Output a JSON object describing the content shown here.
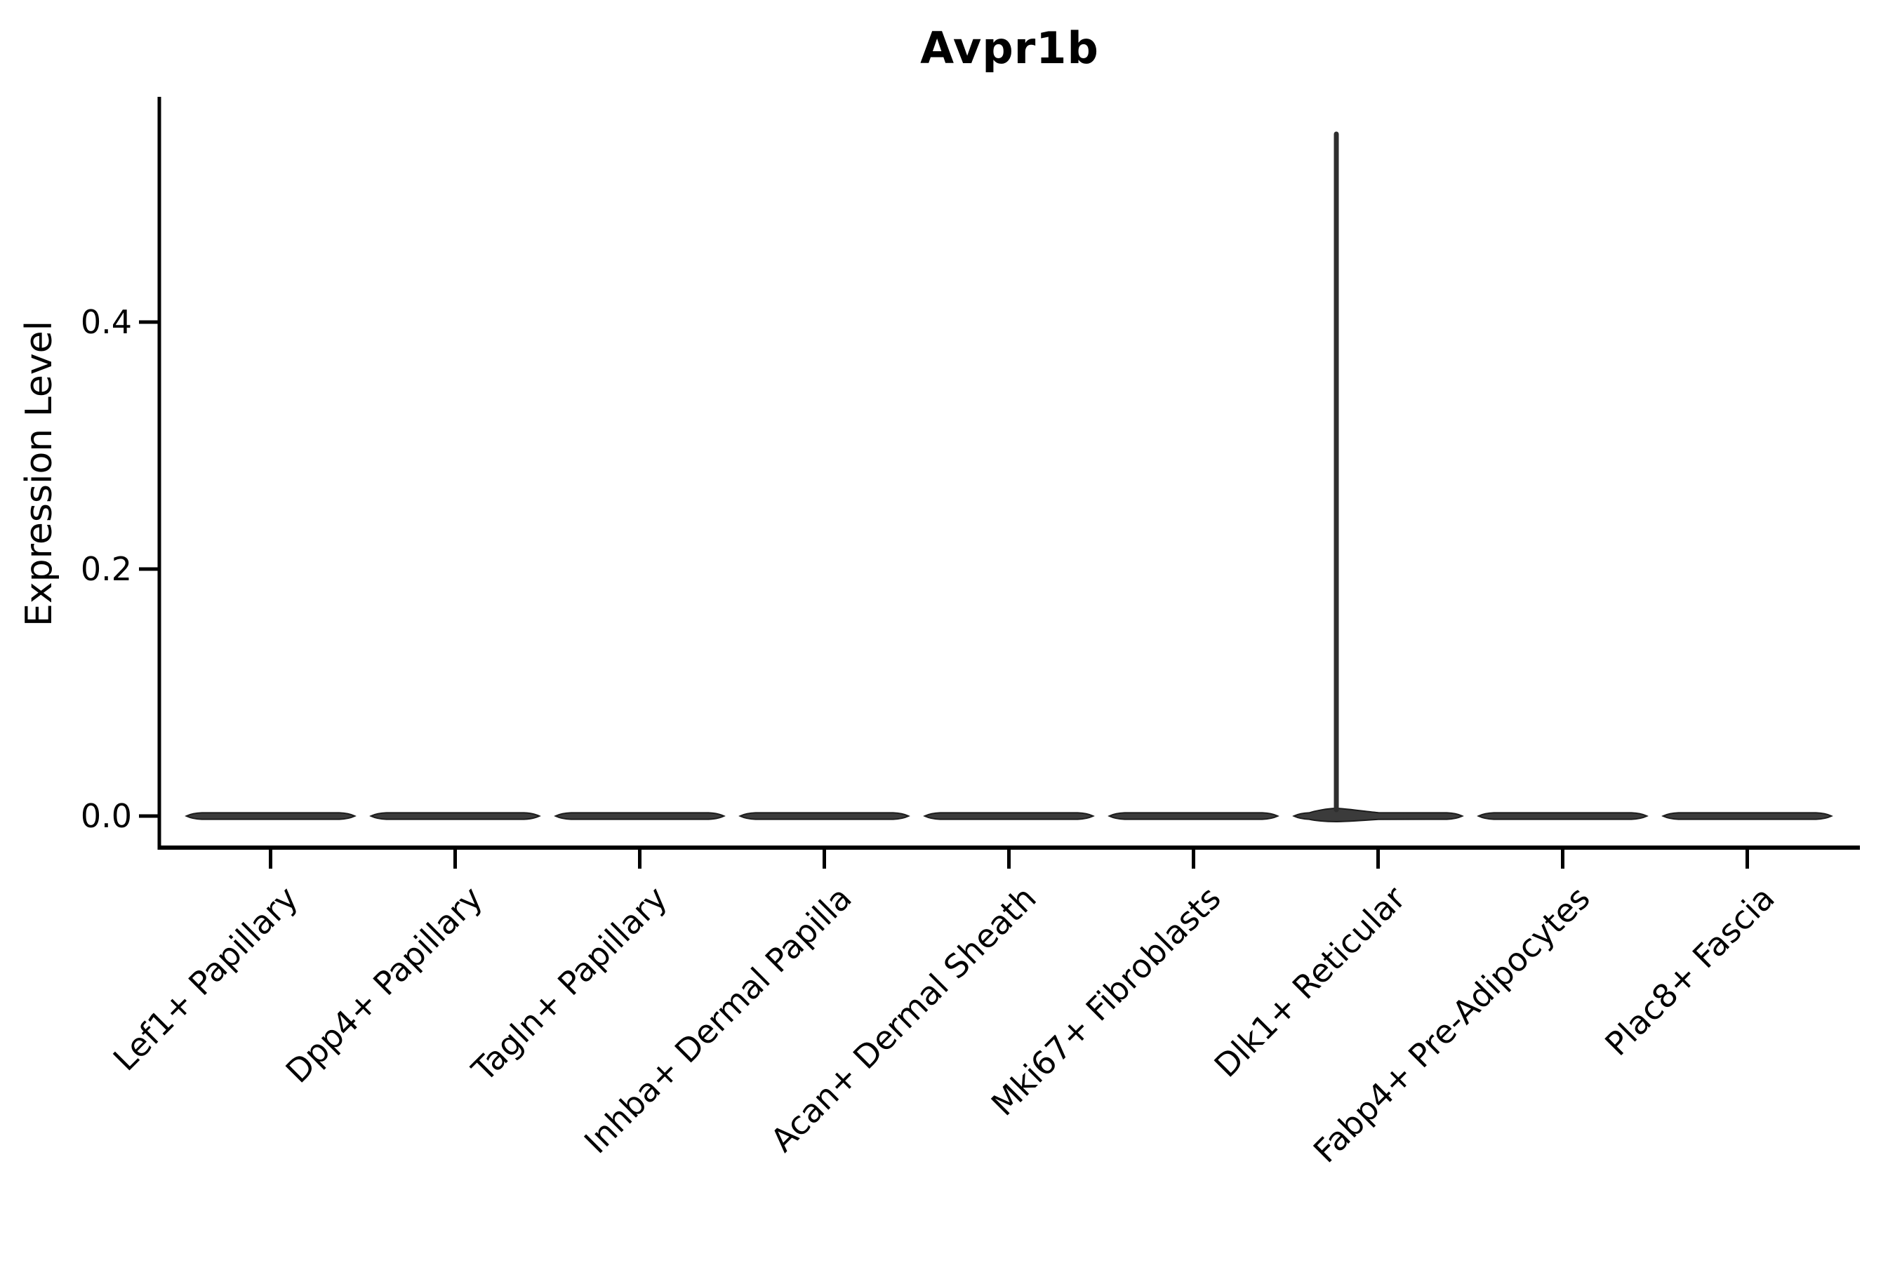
{
  "chart_data": {
    "type": "violin",
    "title": "Avpr1b",
    "ylabel": "Expression Level",
    "xlabel": "",
    "categories": [
      "Lef1+ Papillary",
      "Dpp4+ Papillary",
      "Tagln+ Papillary",
      "Inhba+ Dermal Papilla",
      "Acan+ Dermal Sheath",
      "Mki67+ Fibroblasts",
      "Dlk1+ Reticular",
      "Fabp4+ Pre-Adipocytes",
      "Plac8+ Fascia"
    ],
    "ytick_labels": [
      "0.0",
      "0.2",
      "0.4"
    ],
    "yticks": [
      0.0,
      0.2,
      0.4
    ],
    "ylim": [
      0,
      0.58
    ],
    "series": [
      {
        "name": "max_expression",
        "values": [
          0,
          0,
          0,
          0,
          0,
          0,
          0.554,
          0,
          0
        ]
      }
    ],
    "grid": false,
    "legend": "none",
    "colors": {
      "violin_fill": "#3b3b3b",
      "violin_stroke": "#1c1c1c",
      "spike": "#2e2e2e",
      "axis": "#000000",
      "text": "#000000"
    }
  }
}
